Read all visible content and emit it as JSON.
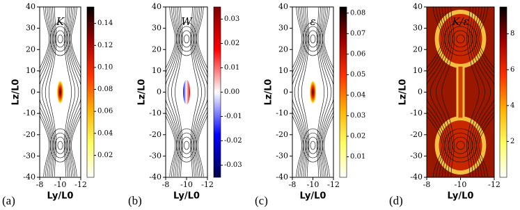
{
  "chart_data": [
    {
      "type": "heatmap",
      "panel_label": "(a)",
      "annotation": "K",
      "xlabel": "Ly/L0",
      "ylabel": "Lz/L0",
      "xlim": [
        -8,
        -12
      ],
      "xticks": [
        -8,
        -10,
        -12
      ],
      "ylim": [
        -40,
        40
      ],
      "yticks": [
        -40,
        -30,
        -20,
        -10,
        0,
        10,
        20,
        30,
        40
      ],
      "cmap": "hot_r",
      "clim": [
        0,
        0.155
      ],
      "cticks": [
        0.02,
        0.04,
        0.06,
        0.08,
        {
          "value": 0.1,
          "label": "0.10"
        },
        0.12,
        0.14
      ]
    },
    {
      "type": "heatmap",
      "panel_label": "(b)",
      "annotation": "W",
      "xlabel": "Ly/L0",
      "ylabel": "Lz/L0",
      "xlim": [
        -8,
        -12
      ],
      "xticks": [
        -8,
        -10,
        -12
      ],
      "ylim": [
        -40,
        40
      ],
      "yticks": [
        -40,
        -30,
        -20,
        -10,
        0,
        10,
        20,
        30,
        40
      ],
      "cmap": "seismic",
      "clim": [
        -0.035,
        0.035
      ],
      "cticks": [
        -0.03,
        -0.02,
        -0.01,
        {
          "value": 0,
          "label": "0.00"
        },
        0.01,
        0.02,
        0.03
      ]
    },
    {
      "type": "heatmap",
      "panel_label": "(c)",
      "annotation": "ε",
      "xlabel": "Ly/L0",
      "ylabel": "Lz/L0",
      "xlim": [
        -8,
        -12
      ],
      "xticks": [
        -8,
        -10,
        -12
      ],
      "ylim": [
        -40,
        40
      ],
      "yticks": [
        -40,
        -30,
        -20,
        -10,
        0,
        10,
        20,
        30,
        40
      ],
      "cmap": "hot_r",
      "clim": [
        0,
        0.083
      ],
      "cticks": [
        0.01,
        0.02,
        0.03,
        0.04,
        0.05,
        0.06,
        0.07,
        0.08
      ]
    },
    {
      "type": "heatmap",
      "panel_label": "(d)",
      "annotation": "K/ε",
      "xlabel": "Ly/L0",
      "ylabel": "Lz/L0",
      "xlim": [
        -8,
        -12
      ],
      "xticks": [
        -8,
        -10,
        -12
      ],
      "ylim": [
        -40,
        40
      ],
      "yticks": [
        -40,
        -30,
        -20,
        -10,
        0,
        10,
        20,
        30,
        40
      ],
      "cmap": "hot_r",
      "clim": [
        0,
        9.5
      ],
      "cticks": [
        2,
        4,
        6,
        8
      ]
    }
  ]
}
